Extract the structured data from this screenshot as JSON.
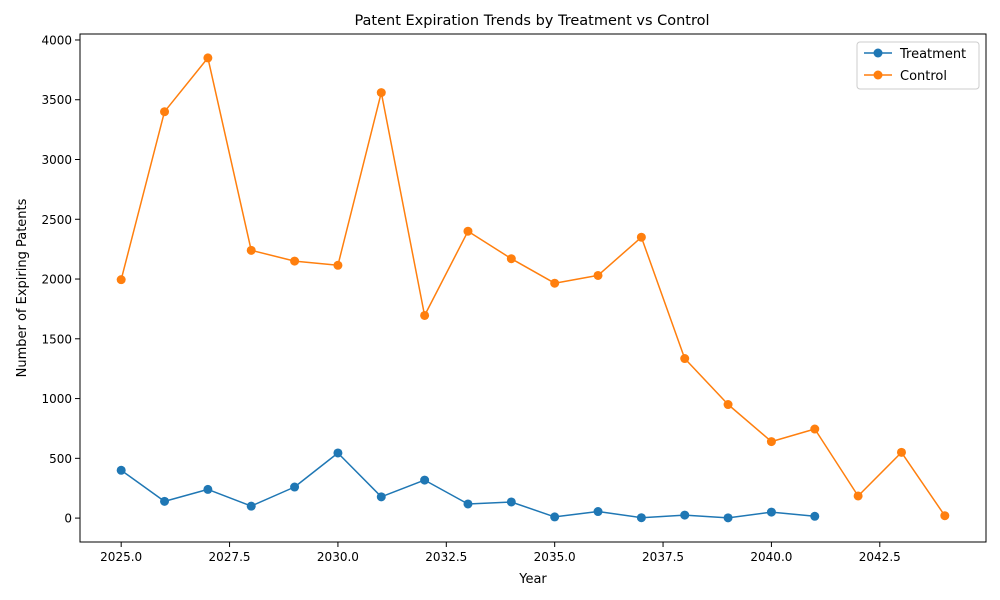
{
  "chart_data": {
    "type": "line",
    "title": "Patent Expiration Trends by Treatment vs Control",
    "xlabel": "Year",
    "ylabel": "Number of Expiring Patents",
    "xlim": [
      2024.05,
      2044.95
    ],
    "ylim": [
      -200,
      4050
    ],
    "xticks": [
      2025.0,
      2027.5,
      2030.0,
      2032.5,
      2035.0,
      2037.5,
      2040.0,
      2042.5
    ],
    "xtick_labels": [
      "2025.0",
      "2027.5",
      "2030.0",
      "2032.5",
      "2035.0",
      "2037.5",
      "2040.0",
      "2042.5"
    ],
    "yticks": [
      0,
      500,
      1000,
      1500,
      2000,
      2500,
      3000,
      3500,
      4000
    ],
    "ytick_labels": [
      "0",
      "500",
      "1000",
      "1500",
      "2000",
      "2500",
      "3000",
      "3500",
      "4000"
    ],
    "grid": false,
    "legend_position": "upper right",
    "series": [
      {
        "name": "Treatment",
        "color": "#1f77b4",
        "x": [
          2025,
          2026,
          2027,
          2028,
          2029,
          2030,
          2031,
          2032,
          2033,
          2034,
          2035,
          2036,
          2037,
          2038,
          2039,
          2040,
          2041
        ],
        "y": [
          400,
          140,
          240,
          100,
          260,
          545,
          178,
          318,
          118,
          135,
          10,
          55,
          3,
          25,
          2,
          50,
          15
        ]
      },
      {
        "name": "Control",
        "color": "#ff7f0e",
        "x": [
          2025,
          2026,
          2027,
          2028,
          2029,
          2030,
          2031,
          2032,
          2033,
          2034,
          2035,
          2036,
          2037,
          2038,
          2039,
          2040,
          2041,
          2042,
          2043,
          2044
        ],
        "y": [
          1995,
          3400,
          3850,
          2240,
          2150,
          2115,
          3560,
          1695,
          2400,
          2170,
          1965,
          2030,
          2350,
          1335,
          950,
          640,
          745,
          185,
          550,
          20
        ]
      }
    ]
  }
}
